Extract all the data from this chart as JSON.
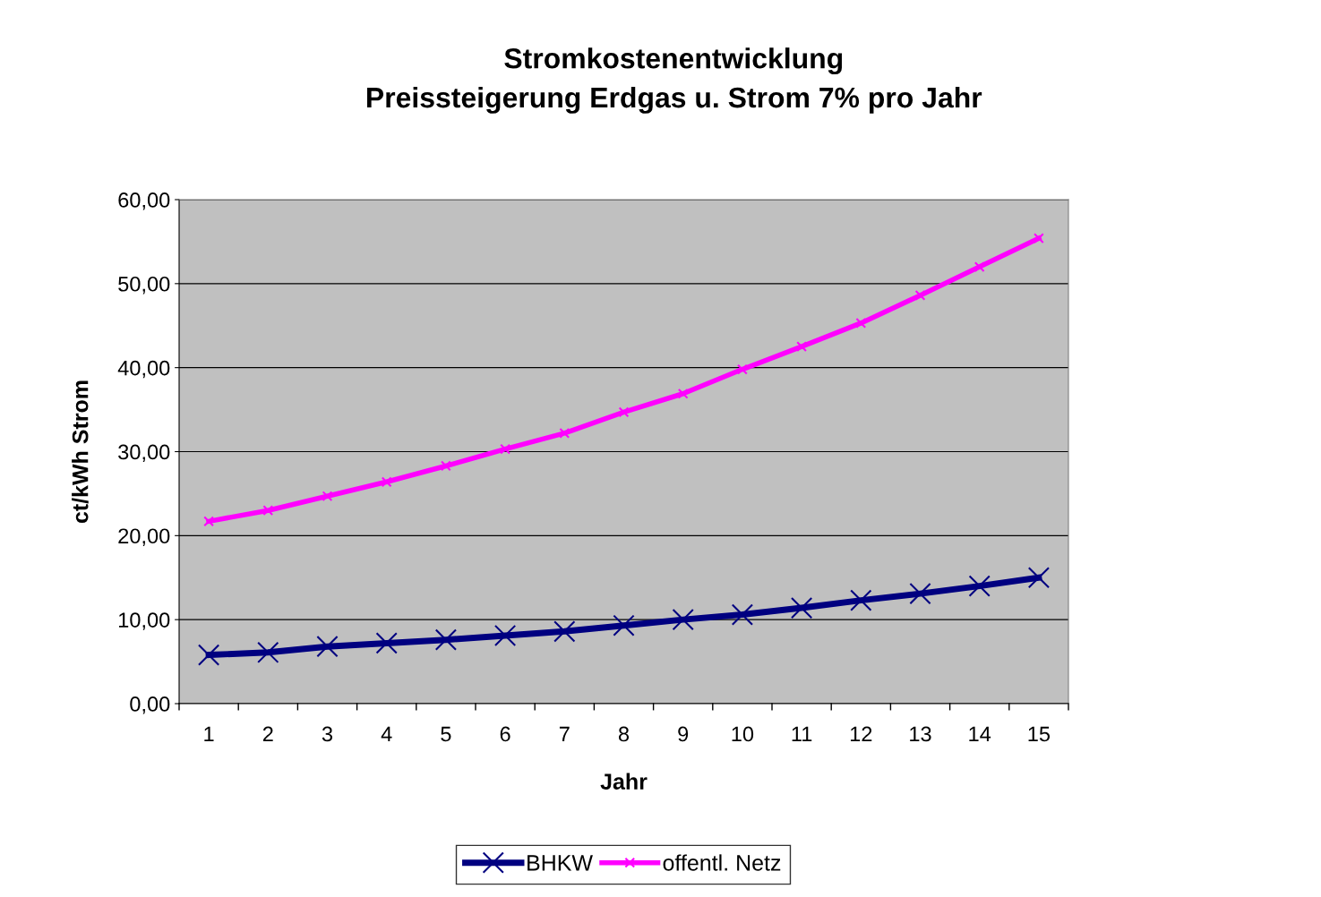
{
  "chart_data": {
    "type": "line",
    "title": "Stromkostenentwicklung\nPreissteigerung Erdgas u. Strom 7% pro Jahr",
    "xlabel": "Jahr",
    "ylabel": "ct/kWh Strom",
    "categories": [
      "1",
      "2",
      "3",
      "4",
      "5",
      "6",
      "7",
      "8",
      "9",
      "10",
      "11",
      "12",
      "13",
      "14",
      "15"
    ],
    "series": [
      {
        "name": "BHKW",
        "color": "#000080",
        "values": [
          5.8,
          6.1,
          6.8,
          7.2,
          7.6,
          8.1,
          8.6,
          9.3,
          10.0,
          10.6,
          11.4,
          12.3,
          13.1,
          14.0,
          15.0
        ]
      },
      {
        "name": "offentl. Netz",
        "color": "#ff00ff",
        "values": [
          21.7,
          23.0,
          24.7,
          26.4,
          28.3,
          30.3,
          32.2,
          34.7,
          36.9,
          39.8,
          42.5,
          45.3,
          48.6,
          52.0,
          55.4
        ]
      }
    ],
    "ylim": [
      0,
      60
    ],
    "yticks": [
      {
        "value": 0,
        "label": "0,00"
      },
      {
        "value": 10,
        "label": "10,00"
      },
      {
        "value": 20,
        "label": "20,00"
      },
      {
        "value": 30,
        "label": "30,00"
      },
      {
        "value": 40,
        "label": "40,00"
      },
      {
        "value": 50,
        "label": "50,00"
      },
      {
        "value": 60,
        "label": "60,00"
      }
    ],
    "grid": "y",
    "legend": "bottom",
    "marker": "cross",
    "line_style": "solid"
  }
}
